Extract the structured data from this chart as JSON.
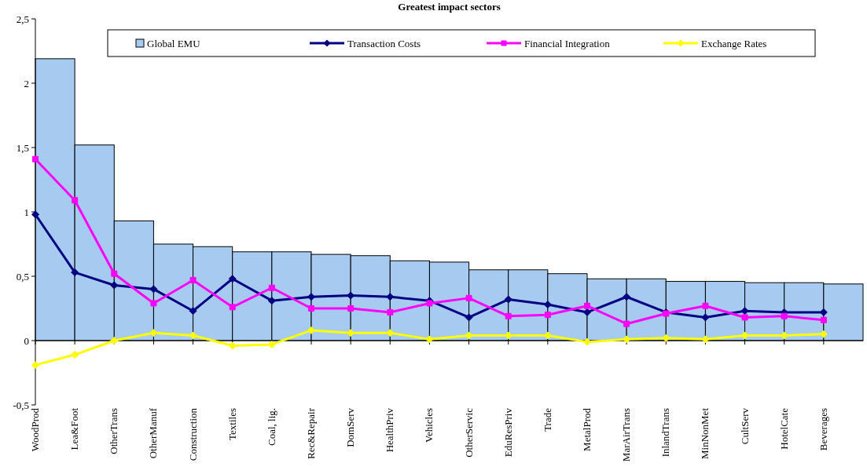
{
  "chart_data": {
    "type": "bar",
    "title": "Greatest impact sectors",
    "categories": [
      "WoodProd",
      "Lea&Foot",
      "OtherTrans",
      "OtherManuf",
      "Construction",
      "Textiles",
      "Coal, lig.",
      "Rec&Repair",
      "DomServ",
      "HealthPriv",
      "Vehicles",
      "OtherServic",
      "EduResPriv",
      "Trade",
      "MetalProd",
      "MarAirTrans",
      "InlandTrans",
      "MinNonMet",
      "CultServ",
      "HotelCate",
      "Beverages"
    ],
    "series": [
      {
        "name": "Global EMU",
        "color": "#a6caf0",
        "values": [
          2.19,
          1.52,
          0.93,
          0.75,
          0.73,
          0.69,
          0.69,
          0.67,
          0.66,
          0.62,
          0.61,
          0.55,
          0.55,
          0.52,
          0.48,
          0.48,
          0.46,
          0.46,
          0.45,
          0.45,
          0.44
        ]
      },
      {
        "name": "Transaction Costs",
        "type": "line",
        "color": "#000080",
        "marker": "diamond",
        "values": [
          0.98,
          0.53,
          0.43,
          0.4,
          0.23,
          0.48,
          0.31,
          0.34,
          0.35,
          0.34,
          0.31,
          0.18,
          0.32,
          0.28,
          0.22,
          0.34,
          0.22,
          0.18,
          0.23,
          0.22,
          0.22
        ]
      },
      {
        "name": "Financial Integration",
        "type": "line",
        "color": "#ff00ff",
        "marker": "square",
        "values": [
          1.41,
          1.09,
          0.52,
          0.29,
          0.47,
          0.26,
          0.41,
          0.25,
          0.25,
          0.22,
          0.29,
          0.33,
          0.19,
          0.2,
          0.27,
          0.13,
          0.21,
          0.27,
          0.18,
          0.19,
          0.16
        ]
      },
      {
        "name": "Exchange Rates",
        "type": "line",
        "color": "#ffff00",
        "marker": "diamond",
        "values": [
          -0.19,
          -0.11,
          0.0,
          0.06,
          0.04,
          -0.04,
          -0.03,
          0.08,
          0.06,
          0.06,
          0.01,
          0.04,
          0.04,
          0.04,
          -0.01,
          0.01,
          0.02,
          0.01,
          0.04,
          0.04,
          0.05
        ]
      }
    ],
    "ylim": [
      -0.5,
      2.5
    ],
    "yticks": [
      {
        "value": -0.5,
        "label": "-0,5"
      },
      0,
      {
        "value": 0.5,
        "label": "0,5"
      },
      1,
      {
        "value": 1.5,
        "label": "1,5"
      },
      2,
      {
        "value": 2.5,
        "label": "2,5"
      }
    ],
    "legend": "top"
  }
}
